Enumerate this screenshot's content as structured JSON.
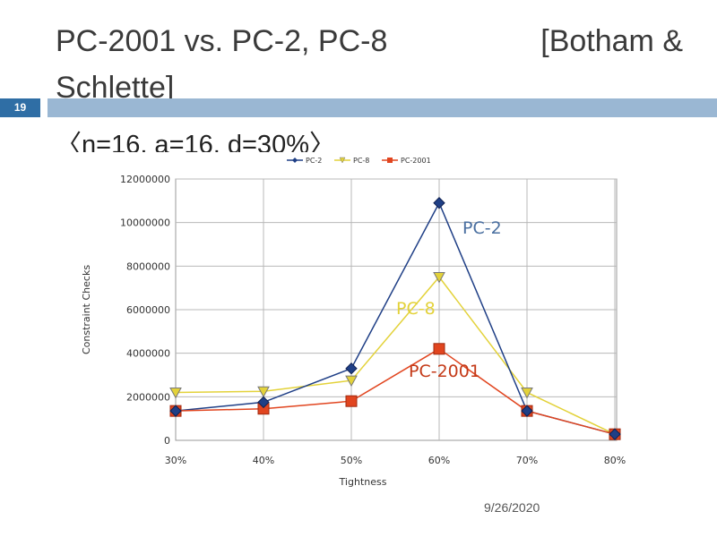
{
  "slide": {
    "title_part1": "PC-2001 vs. PC-2, PC-8",
    "title_part2": "[Botham &",
    "title_part3": "Schlette]",
    "slide_number": "19",
    "params": "〈n=16, a=16, d=30%〉",
    "date": "9/26/2020"
  },
  "colors": {
    "accent_dark": "#2f6ea5",
    "accent_light": "#9ab7d3",
    "pc2": "#1f3f86",
    "pc8": "#e3d23a",
    "pc2001": "#e1451f"
  },
  "chart_data": {
    "type": "line",
    "xlabel": "Tightness",
    "ylabel": "Constraint Checks",
    "categories": [
      "30%",
      "40%",
      "50%",
      "60%",
      "70%",
      "80%"
    ],
    "ylim": [
      0,
      12000000
    ],
    "yticks": [
      "0",
      "2000000",
      "4000000",
      "6000000",
      "8000000",
      "10000000",
      "12000000"
    ],
    "grid": true,
    "legend": "top",
    "series": [
      {
        "name": "PC-2",
        "values": [
          1350000,
          1750000,
          3300000,
          10900000,
          1350000,
          280000
        ]
      },
      {
        "name": "PC-8",
        "values": [
          2200000,
          2250000,
          2750000,
          7500000,
          2200000,
          280000
        ]
      },
      {
        "name": "PC-2001",
        "values": [
          1350000,
          1450000,
          1800000,
          4200000,
          1350000,
          280000
        ]
      }
    ],
    "annotations": [
      "PC-2",
      "PC-8",
      "PC-2001"
    ]
  }
}
